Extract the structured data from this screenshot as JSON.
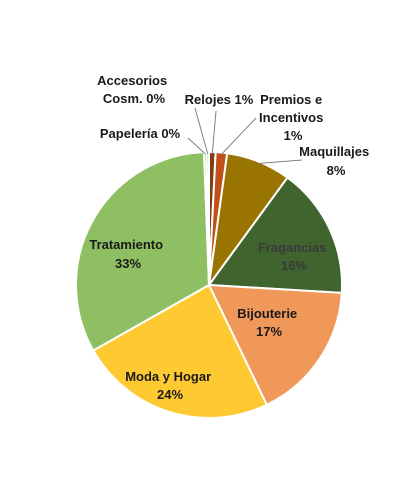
{
  "chart_data": {
    "type": "pie",
    "title": "",
    "slices": [
      {
        "label": "Relojes",
        "pct_text": "1%",
        "value": 0.8,
        "color": "#7f3f12"
      },
      {
        "label": "Premios e Incentivos",
        "pct_text": "1%",
        "value": 1.4,
        "color": "#c0501a"
      },
      {
        "label": "Maquillajes",
        "pct_text": "8%",
        "value": 7.9,
        "color": "#9a7400"
      },
      {
        "label": "Fragancias",
        "pct_text": "16%",
        "value": 16.0,
        "color": "#3f642d"
      },
      {
        "label": "Bijouterie",
        "pct_text": "17%",
        "value": 17.0,
        "color": "#f0975a"
      },
      {
        "label": "Moda y Hogar",
        "pct_text": "24%",
        "value": 24.1,
        "color": "#ffc931"
      },
      {
        "label": "Tratamiento",
        "pct_text": "33%",
        "value": 32.8,
        "color": "#8fbf63"
      },
      {
        "label": "Papelería",
        "pct_text": "0%",
        "value": 0.3,
        "color": "#5b9a3a"
      },
      {
        "label": "Accesorios Cosm.",
        "pct_text": "0%",
        "value": 0.3,
        "color": "#a9d18e"
      }
    ],
    "labels": {
      "accesorios_l1": "Accesorios",
      "accesorios_l2": "Cosm. 0%",
      "relojes": "Relojes 1%",
      "premios_l1": "Premios e",
      "premios_l2": "Incentivos",
      "premios_l3": "1%",
      "papeleria": "Papelería 0%",
      "maquillajes_l1": "Maquillajes",
      "maquillajes_l2": "8%",
      "fragancias_l1": "Fragancias",
      "fragancias_l2": "16%",
      "bijouterie_l1": "Bijouterie",
      "bijouterie_l2": "17%",
      "moda_l1": "Moda y Hogar",
      "moda_l2": "24%",
      "tratamiento_l1": "Tratamiento",
      "tratamiento_l2": "33%"
    },
    "leader_color": "#7f7f7f",
    "legend": "none"
  }
}
